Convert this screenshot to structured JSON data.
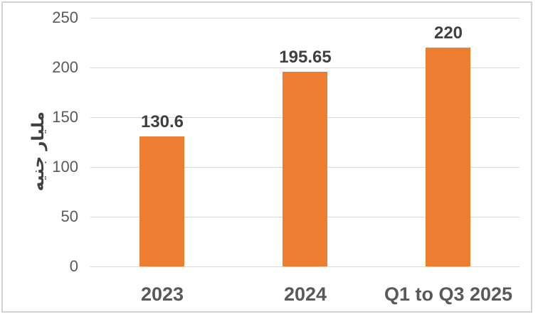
{
  "chart_data": {
    "type": "bar",
    "categories": [
      "2023",
      "2024",
      "Q1 to Q3 2025"
    ],
    "values": [
      130.6,
      195.65,
      220
    ],
    "value_labels": [
      "130.6",
      "195.65",
      "220"
    ],
    "title": "",
    "xlabel": "",
    "ylabel": "مليار جنيه",
    "ylim": [
      0,
      250
    ],
    "yticks": [
      0,
      50,
      100,
      150,
      200,
      250
    ],
    "grid": true,
    "legend_position": "none",
    "bar_color": "#ED7D31",
    "gridline_color": "#D9D9D9",
    "frame_border_color": "#D2D2D2",
    "tick_label_color": "#595959",
    "data_label_color": "#404040",
    "category_label_color": "#595959",
    "ylabel_color": "#404040"
  }
}
